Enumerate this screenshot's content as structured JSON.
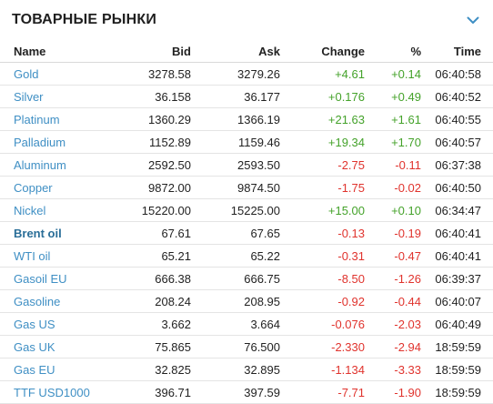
{
  "header": {
    "title": "ТОВАРНЫЕ РЫНКИ",
    "toggle_icon": "chevron-down-icon"
  },
  "colors": {
    "link": "#3f8fc4",
    "positive": "#44a22a",
    "negative": "#e0332d"
  },
  "table": {
    "columns": [
      "Name",
      "Bid",
      "Ask",
      "Change",
      "%",
      "Time"
    ],
    "rows": [
      {
        "name": "Gold",
        "bid": "3278.58",
        "ask": "3279.26",
        "change": "+4.61",
        "pct": "+0.14",
        "time": "06:40:58",
        "dir": "pos",
        "bold": false
      },
      {
        "name": "Silver",
        "bid": "36.158",
        "ask": "36.177",
        "change": "+0.176",
        "pct": "+0.49",
        "time": "06:40:52",
        "dir": "pos",
        "bold": false
      },
      {
        "name": "Platinum",
        "bid": "1360.29",
        "ask": "1366.19",
        "change": "+21.63",
        "pct": "+1.61",
        "time": "06:40:55",
        "dir": "pos",
        "bold": false
      },
      {
        "name": "Palladium",
        "bid": "1152.89",
        "ask": "1159.46",
        "change": "+19.34",
        "pct": "+1.70",
        "time": "06:40:57",
        "dir": "pos",
        "bold": false
      },
      {
        "name": "Aluminum",
        "bid": "2592.50",
        "ask": "2593.50",
        "change": "-2.75",
        "pct": "-0.11",
        "time": "06:37:38",
        "dir": "neg",
        "bold": false
      },
      {
        "name": "Copper",
        "bid": "9872.00",
        "ask": "9874.50",
        "change": "-1.75",
        "pct": "-0.02",
        "time": "06:40:50",
        "dir": "neg",
        "bold": false
      },
      {
        "name": "Nickel",
        "bid": "15220.00",
        "ask": "15225.00",
        "change": "+15.00",
        "pct": "+0.10",
        "time": "06:34:47",
        "dir": "pos",
        "bold": false
      },
      {
        "name": "Brent oil",
        "bid": "67.61",
        "ask": "67.65",
        "change": "-0.13",
        "pct": "-0.19",
        "time": "06:40:41",
        "dir": "neg",
        "bold": true
      },
      {
        "name": "WTI oil",
        "bid": "65.21",
        "ask": "65.22",
        "change": "-0.31",
        "pct": "-0.47",
        "time": "06:40:41",
        "dir": "neg",
        "bold": false
      },
      {
        "name": "Gasoil EU",
        "bid": "666.38",
        "ask": "666.75",
        "change": "-8.50",
        "pct": "-1.26",
        "time": "06:39:37",
        "dir": "neg",
        "bold": false
      },
      {
        "name": "Gasoline",
        "bid": "208.24",
        "ask": "208.95",
        "change": "-0.92",
        "pct": "-0.44",
        "time": "06:40:07",
        "dir": "neg",
        "bold": false
      },
      {
        "name": "Gas US",
        "bid": "3.662",
        "ask": "3.664",
        "change": "-0.076",
        "pct": "-2.03",
        "time": "06:40:49",
        "dir": "neg",
        "bold": false
      },
      {
        "name": "Gas UK",
        "bid": "75.865",
        "ask": "76.500",
        "change": "-2.330",
        "pct": "-2.94",
        "time": "18:59:59",
        "dir": "neg",
        "bold": false
      },
      {
        "name": "Gas EU",
        "bid": "32.825",
        "ask": "32.895",
        "change": "-1.134",
        "pct": "-3.33",
        "time": "18:59:59",
        "dir": "neg",
        "bold": false
      },
      {
        "name": "TTF USD1000",
        "bid": "396.71",
        "ask": "397.59",
        "change": "-7.71",
        "pct": "-1.90",
        "time": "18:59:59",
        "dir": "neg",
        "bold": false
      }
    ]
  }
}
